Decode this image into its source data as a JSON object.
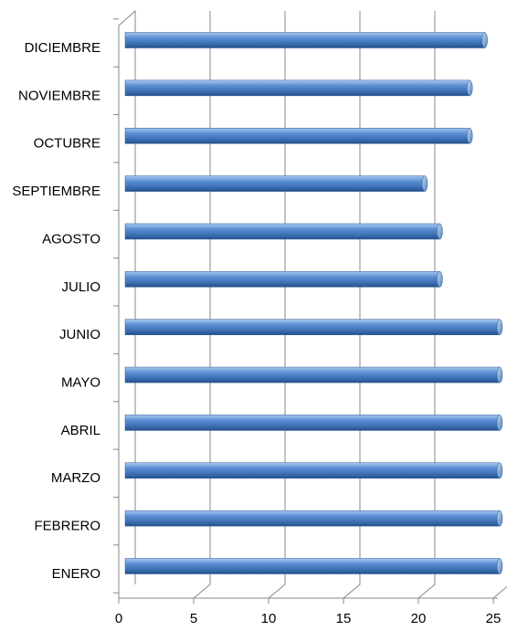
{
  "chart_data": {
    "type": "barh",
    "categories": [
      "ENERO",
      "FEBRERO",
      "MARZO",
      "ABRIL",
      "MAYO",
      "JUNIO",
      "JULIO",
      "AGOSTO",
      "SEPTIEMBRE",
      "OCTUBRE",
      "NOVIEMBRE",
      "DICIEMBRE"
    ],
    "values": [
      25,
      25,
      25,
      25,
      25,
      25,
      21,
      21,
      20,
      23,
      23,
      24
    ],
    "color": "#4f81bd",
    "xlim": [
      0,
      25
    ],
    "xticks": [
      0,
      5,
      10,
      15,
      20,
      25
    ],
    "grid": true
  }
}
